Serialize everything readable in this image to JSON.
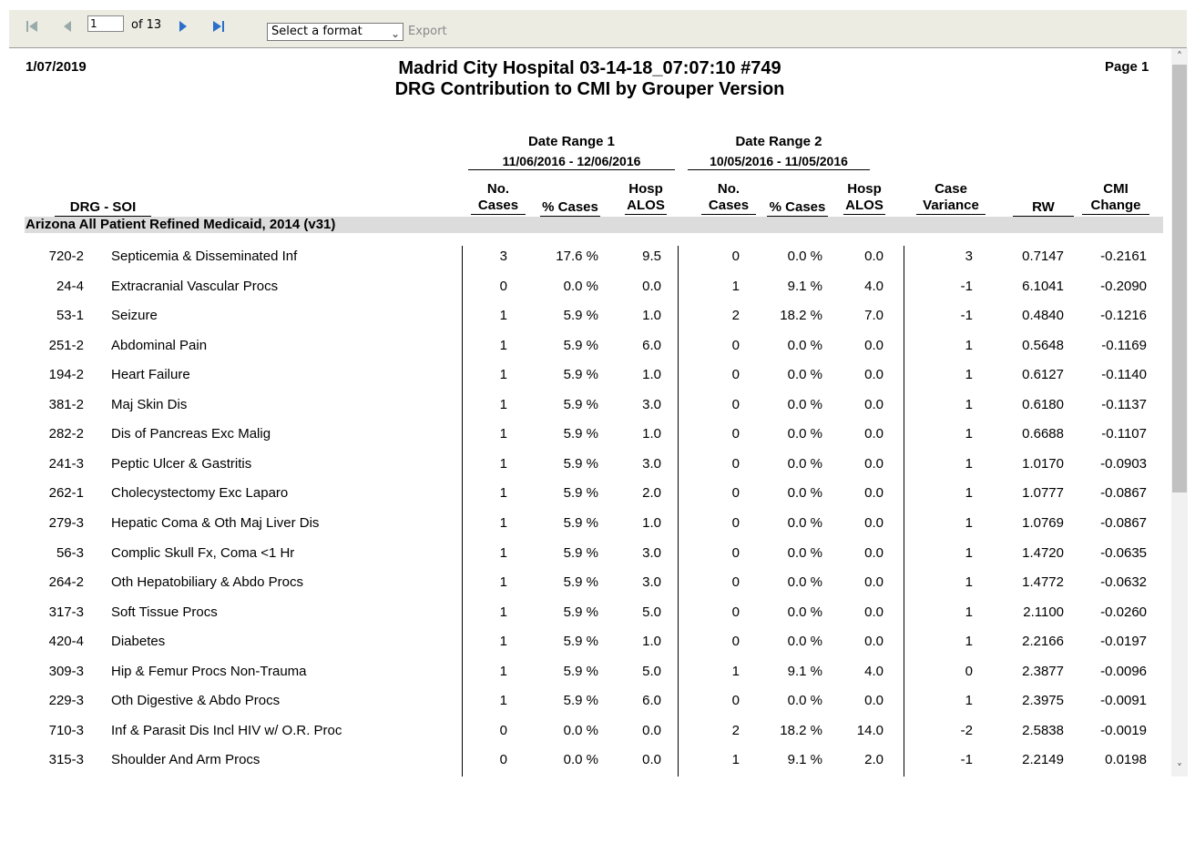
{
  "toolbar": {
    "page_input": "1",
    "page_of": "of 13",
    "format_select": "Select a format",
    "export": "Export"
  },
  "report": {
    "date": "1/07/2019",
    "title_line1": "Madrid City Hospital 03-14-18_07:07:10 #749",
    "title_line2": "DRG Contribution to CMI by Grouper Version",
    "page": "Page 1",
    "range1_label": "Date Range 1",
    "range1_dates": "11/06/2016 - 12/06/2016",
    "range2_label": "Date Range 2",
    "range2_dates": "10/05/2016 - 11/05/2016",
    "columns": {
      "drg_soi": "DRG - SOI",
      "no_cases_1": "No.",
      "no_cases_2": "Cases",
      "pct_cases": "% Cases",
      "hosp_1": "Hosp",
      "hosp_2": "ALOS",
      "case_var_1": "Case",
      "case_var_2": "Variance",
      "rw": "RW",
      "cmi_1": "CMI",
      "cmi_2": "Change"
    },
    "group": "Arizona All Patient Refined Medicaid, 2014 (v31)",
    "rows": [
      {
        "drg": "720-2",
        "desc": "Septicemia & Disseminated Inf",
        "c1": "3",
        "p1": "17.6 %",
        "a1": "9.5",
        "c2": "0",
        "p2": "0.0 %",
        "a2": "0.0",
        "var": "3",
        "rw": "0.7147",
        "cmi": "-0.2161"
      },
      {
        "drg": "24-4",
        "desc": "Extracranial Vascular Procs",
        "c1": "0",
        "p1": "0.0 %",
        "a1": "0.0",
        "c2": "1",
        "p2": "9.1 %",
        "a2": "4.0",
        "var": "-1",
        "rw": "6.1041",
        "cmi": "-0.2090"
      },
      {
        "drg": "53-1",
        "desc": "Seizure",
        "c1": "1",
        "p1": "5.9 %",
        "a1": "1.0",
        "c2": "2",
        "p2": "18.2 %",
        "a2": "7.0",
        "var": "-1",
        "rw": "0.4840",
        "cmi": "-0.1216"
      },
      {
        "drg": "251-2",
        "desc": "Abdominal Pain",
        "c1": "1",
        "p1": "5.9 %",
        "a1": "6.0",
        "c2": "0",
        "p2": "0.0 %",
        "a2": "0.0",
        "var": "1",
        "rw": "0.5648",
        "cmi": "-0.1169"
      },
      {
        "drg": "194-2",
        "desc": "Heart Failure",
        "c1": "1",
        "p1": "5.9 %",
        "a1": "1.0",
        "c2": "0",
        "p2": "0.0 %",
        "a2": "0.0",
        "var": "1",
        "rw": "0.6127",
        "cmi": "-0.1140"
      },
      {
        "drg": "381-2",
        "desc": "Maj Skin Dis",
        "c1": "1",
        "p1": "5.9 %",
        "a1": "3.0",
        "c2": "0",
        "p2": "0.0 %",
        "a2": "0.0",
        "var": "1",
        "rw": "0.6180",
        "cmi": "-0.1137"
      },
      {
        "drg": "282-2",
        "desc": "Dis of Pancreas Exc Malig",
        "c1": "1",
        "p1": "5.9 %",
        "a1": "1.0",
        "c2": "0",
        "p2": "0.0 %",
        "a2": "0.0",
        "var": "1",
        "rw": "0.6688",
        "cmi": "-0.1107"
      },
      {
        "drg": "241-3",
        "desc": "Peptic Ulcer & Gastritis",
        "c1": "1",
        "p1": "5.9 %",
        "a1": "3.0",
        "c2": "0",
        "p2": "0.0 %",
        "a2": "0.0",
        "var": "1",
        "rw": "1.0170",
        "cmi": "-0.0903"
      },
      {
        "drg": "262-1",
        "desc": "Cholecystectomy Exc Laparo",
        "c1": "1",
        "p1": "5.9 %",
        "a1": "2.0",
        "c2": "0",
        "p2": "0.0 %",
        "a2": "0.0",
        "var": "1",
        "rw": "1.0777",
        "cmi": "-0.0867"
      },
      {
        "drg": "279-3",
        "desc": "Hepatic Coma & Oth Maj Liver Dis",
        "c1": "1",
        "p1": "5.9 %",
        "a1": "1.0",
        "c2": "0",
        "p2": "0.0 %",
        "a2": "0.0",
        "var": "1",
        "rw": "1.0769",
        "cmi": "-0.0867"
      },
      {
        "drg": "56-3",
        "desc": "Complic Skull Fx, Coma <1 Hr",
        "c1": "1",
        "p1": "5.9 %",
        "a1": "3.0",
        "c2": "0",
        "p2": "0.0 %",
        "a2": "0.0",
        "var": "1",
        "rw": "1.4720",
        "cmi": "-0.0635"
      },
      {
        "drg": "264-2",
        "desc": "Oth Hepatobiliary & Abdo Procs",
        "c1": "1",
        "p1": "5.9 %",
        "a1": "3.0",
        "c2": "0",
        "p2": "0.0 %",
        "a2": "0.0",
        "var": "1",
        "rw": "1.4772",
        "cmi": "-0.0632"
      },
      {
        "drg": "317-3",
        "desc": "Soft Tissue Procs",
        "c1": "1",
        "p1": "5.9 %",
        "a1": "5.0",
        "c2": "0",
        "p2": "0.0 %",
        "a2": "0.0",
        "var": "1",
        "rw": "2.1100",
        "cmi": "-0.0260"
      },
      {
        "drg": "420-4",
        "desc": "Diabetes",
        "c1": "1",
        "p1": "5.9 %",
        "a1": "1.0",
        "c2": "0",
        "p2": "0.0 %",
        "a2": "0.0",
        "var": "1",
        "rw": "2.2166",
        "cmi": "-0.0197"
      },
      {
        "drg": "309-3",
        "desc": "Hip & Femur Procs Non-Trauma",
        "c1": "1",
        "p1": "5.9 %",
        "a1": "5.0",
        "c2": "1",
        "p2": "9.1 %",
        "a2": "4.0",
        "var": "0",
        "rw": "2.3877",
        "cmi": "-0.0096"
      },
      {
        "drg": "229-3",
        "desc": "Oth Digestive & Abdo Procs",
        "c1": "1",
        "p1": "5.9 %",
        "a1": "6.0",
        "c2": "0",
        "p2": "0.0 %",
        "a2": "0.0",
        "var": "1",
        "rw": "2.3975",
        "cmi": "-0.0091"
      },
      {
        "drg": "710-3",
        "desc": "Inf & Parasit Dis Incl HIV w/ O.R. Proc",
        "c1": "0",
        "p1": "0.0 %",
        "a1": "0.0",
        "c2": "2",
        "p2": "18.2 %",
        "a2": "14.0",
        "var": "-2",
        "rw": "2.5838",
        "cmi": "-0.0019"
      },
      {
        "drg": "315-3",
        "desc": "Shoulder And Arm Procs",
        "c1": "0",
        "p1": "0.0 %",
        "a1": "0.0",
        "c2": "1",
        "p2": "9.1 %",
        "a2": "2.0",
        "var": "-1",
        "rw": "2.2149",
        "cmi": "0.0198"
      }
    ]
  }
}
